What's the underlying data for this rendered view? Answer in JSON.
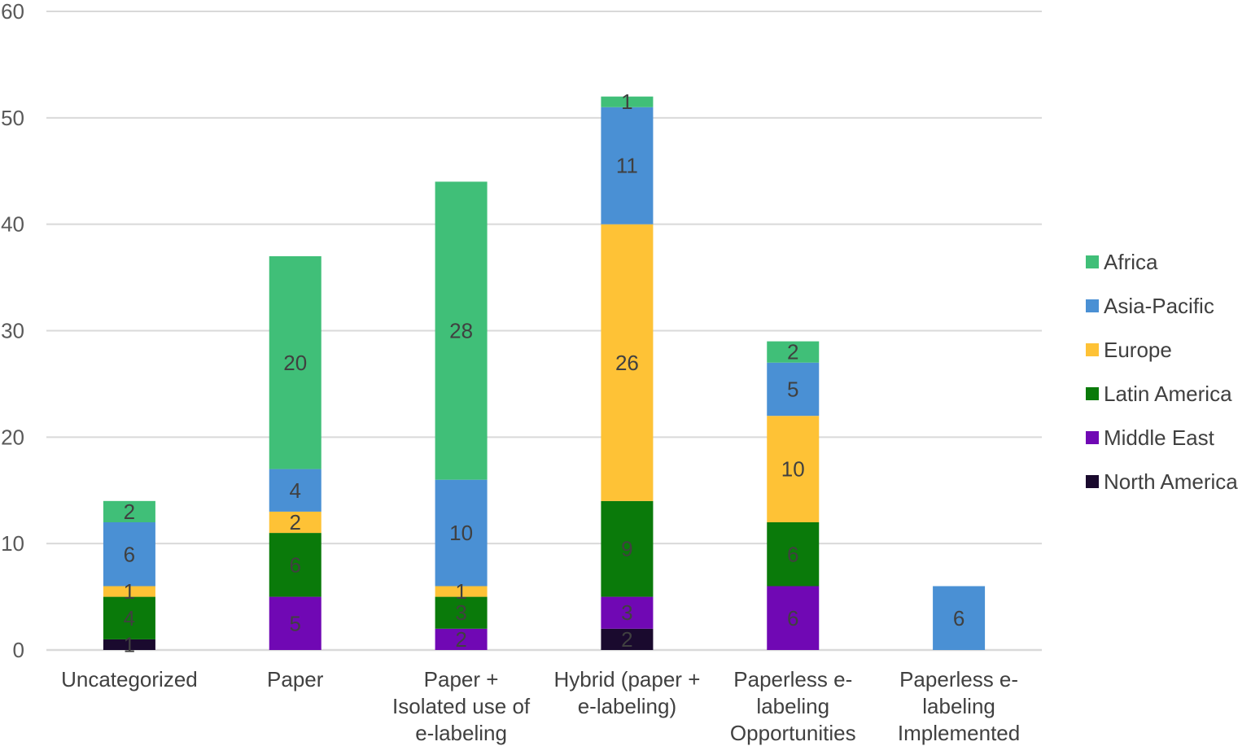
{
  "chart_data": {
    "type": "bar",
    "stacked": true,
    "title": "",
    "xlabel": "",
    "ylabel": "",
    "ylim": [
      0,
      60
    ],
    "yticks": [
      0,
      10,
      20,
      30,
      40,
      50,
      60
    ],
    "grid": true,
    "legend_position": "right",
    "categories": [
      [
        "Uncategorized"
      ],
      [
        "Paper"
      ],
      [
        "Paper +",
        "Isolated use of",
        "e-labeling"
      ],
      [
        "Hybrid (paper +",
        "e-labeling)"
      ],
      [
        "Paperless e-",
        "labeling",
        "Opportunities"
      ],
      [
        "Paperless e-",
        "labeling",
        "Implemented"
      ]
    ],
    "series": [
      {
        "name": "North America",
        "color": "#1a0a2e",
        "values": [
          1,
          0,
          0,
          2,
          0,
          0
        ]
      },
      {
        "name": "Middle East",
        "color": "#7008b4",
        "values": [
          0,
          5,
          2,
          3,
          6,
          0
        ]
      },
      {
        "name": "Latin America",
        "color": "#0a7a0a",
        "values": [
          4,
          6,
          3,
          9,
          6,
          0
        ]
      },
      {
        "name": "Europe",
        "color": "#fec236",
        "values": [
          1,
          2,
          1,
          26,
          10,
          0
        ]
      },
      {
        "name": "Asia-Pacific",
        "color": "#4a90d4",
        "values": [
          6,
          4,
          10,
          11,
          5,
          6
        ]
      },
      {
        "name": "Africa",
        "color": "#40bf78",
        "values": [
          2,
          20,
          28,
          1,
          2,
          0
        ]
      }
    ],
    "legend_order": [
      "Africa",
      "Asia-Pacific",
      "Europe",
      "Latin America",
      "Middle East",
      "North America"
    ]
  }
}
